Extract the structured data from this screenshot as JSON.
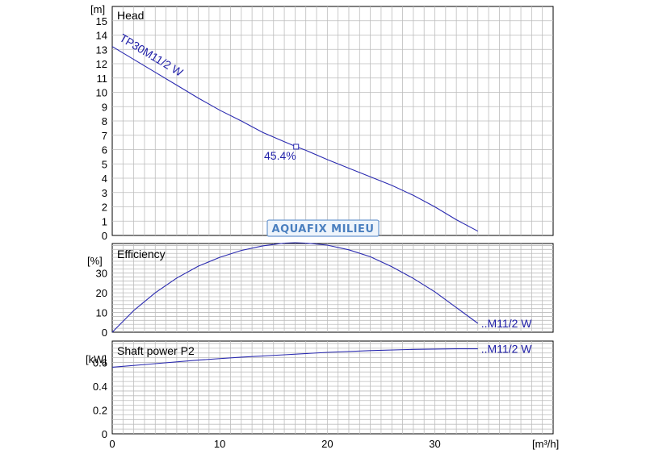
{
  "chart_data": [
    {
      "type": "line",
      "title": "Head",
      "unit": "[m]",
      "ylim": [
        0,
        16
      ],
      "yticks": [
        0,
        1,
        2,
        3,
        4,
        5,
        6,
        7,
        8,
        9,
        10,
        11,
        12,
        13,
        14,
        15
      ],
      "xlim": [
        0,
        41
      ],
      "grid": true,
      "series": [
        {
          "name": "TP30M11/2 W",
          "x": [
            0,
            2,
            4,
            6,
            8,
            10,
            12,
            14,
            16,
            17.1,
            18,
            20,
            22,
            24,
            26,
            28,
            30,
            32,
            34
          ],
          "y": [
            13.2,
            12.3,
            11.4,
            10.5,
            9.6,
            8.75,
            8.0,
            7.2,
            6.55,
            6.2,
            5.95,
            5.3,
            4.7,
            4.1,
            3.5,
            2.8,
            2.0,
            1.1,
            0.3
          ]
        }
      ],
      "annotations": [
        {
          "x": 17.1,
          "y": 6.2,
          "label": "45.4%"
        }
      ]
    },
    {
      "type": "line",
      "title": "Efficiency",
      "unit": "[%]",
      "ylim": [
        0,
        45
      ],
      "yticks": [
        0,
        10,
        20,
        30
      ],
      "xlim": [
        0,
        41
      ],
      "grid": true,
      "series": [
        {
          "name": "..M11/2 W",
          "x": [
            0,
            2,
            4,
            6,
            8,
            10,
            12,
            14,
            16,
            17,
            18,
            20,
            22,
            24,
            26,
            28,
            30,
            32,
            34
          ],
          "y": [
            0,
            11,
            20,
            27.5,
            33.5,
            38,
            41.5,
            43.8,
            45.2,
            45.4,
            45.2,
            44.2,
            41.8,
            38.3,
            33.2,
            27.3,
            20.5,
            12.5,
            4.5
          ]
        }
      ]
    },
    {
      "type": "line",
      "title": "Shaft power P2",
      "unit": "[kW]",
      "ylim": [
        0,
        0.78
      ],
      "yticks": [
        0,
        0.2,
        0.4,
        0.6
      ],
      "xlim": [
        0,
        41
      ],
      "xticks": [
        0,
        10,
        20,
        30
      ],
      "xlabel": "[m³/h]",
      "grid": true,
      "series": [
        {
          "name": "..M11/2 W",
          "x": [
            0,
            4,
            8,
            12,
            16,
            20,
            24,
            28,
            32,
            34
          ],
          "y": [
            0.56,
            0.59,
            0.62,
            0.645,
            0.665,
            0.685,
            0.7,
            0.71,
            0.715,
            0.715
          ]
        }
      ]
    }
  ],
  "watermark": "AQUAFIX MILIEU",
  "colors": {
    "curve": "#2a2ab0",
    "grid": "#bdbdbd",
    "watermark": "#4a7fbf"
  }
}
